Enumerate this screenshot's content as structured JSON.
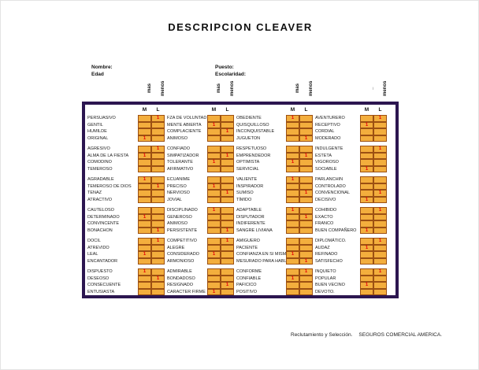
{
  "title": "DESCRIPCION CLEAVER",
  "meta": {
    "nombre_label": "Nombre:",
    "edad_label": "Edad",
    "puesto_label": "Puesto:",
    "escolaridad_label": "Escolaridad:"
  },
  "mark_headers": [
    {
      "mas": "mas",
      "menos": "menos"
    },
    {
      "mas": "mas",
      "menos": "menos"
    },
    {
      "mas": "mas",
      "menos": "menos"
    },
    {
      "mas": "_",
      "menos": "menos"
    }
  ],
  "table": {
    "m_header": "M",
    "l_header": "L",
    "groups": [
      {
        "rows": [
          {
            "words": [
              "PERSUASIVO",
              "FZA DE VOLUNTAD",
              "OBEDIENTE",
              "AVENTURERO"
            ],
            "marks": [
              [
                "",
                "1"
              ],
              [
                "",
                ""
              ],
              [
                "1",
                ""
              ],
              [
                "",
                "1"
              ]
            ]
          },
          {
            "words": [
              "GENTIL",
              "MENTE ABIERTA",
              "QUISQUILLOSO",
              "RECEPTIVO"
            ],
            "marks": [
              [
                "",
                ""
              ],
              [
                "1",
                ""
              ],
              [
                "",
                ""
              ],
              [
                "1",
                ""
              ]
            ]
          },
          {
            "words": [
              "HUMILDE",
              "COMPLACIENTE",
              "INCONQUISTABLE",
              "CORDIAL"
            ],
            "marks": [
              [
                "",
                ""
              ],
              [
                "",
                "1"
              ],
              [
                "",
                ""
              ],
              [
                "",
                ""
              ]
            ]
          },
          {
            "words": [
              "ORIGINAL",
              "ANIMOSO",
              "JUGUETON",
              "MODERADO"
            ],
            "marks": [
              [
                "1",
                ""
              ],
              [
                "",
                ""
              ],
              [
                "",
                "1"
              ],
              [
                "",
                ""
              ]
            ]
          }
        ]
      },
      {
        "rows": [
          {
            "words": [
              "AGRESIVO",
              "CONFIADO",
              "RESPETUOSO",
              "INDULGENTE"
            ],
            "marks": [
              [
                "",
                "1"
              ],
              [
                "",
                ""
              ],
              [
                "",
                ""
              ],
              [
                "",
                "1"
              ]
            ]
          },
          {
            "words": [
              "ALMA DE LA FIESTA",
              "SIMPATIZADOR",
              "EMPRENDEDOR",
              "ESTETA"
            ],
            "marks": [
              [
                "1",
                ""
              ],
              [
                "",
                "1"
              ],
              [
                "",
                "1"
              ],
              [
                "",
                ""
              ]
            ]
          },
          {
            "words": [
              "COMODINO",
              "TOLERANTE",
              "OPTIMISTA",
              "VIGOROSO"
            ],
            "marks": [
              [
                "",
                ""
              ],
              [
                "1",
                ""
              ],
              [
                "1",
                ""
              ],
              [
                "",
                ""
              ]
            ]
          },
          {
            "words": [
              "TEMEROSO",
              "AFIRMATIVO",
              "SERVICIAL",
              "SOCIABLE"
            ],
            "marks": [
              [
                "",
                ""
              ],
              [
                "",
                ""
              ],
              [
                "",
                ""
              ],
              [
                "1",
                ""
              ]
            ]
          }
        ]
      },
      {
        "rows": [
          {
            "words": [
              "AGRADABLE",
              "ECUANIME",
              "VALIENTE",
              "PARLANCHIN"
            ],
            "marks": [
              [
                "1",
                ""
              ],
              [
                "",
                ""
              ],
              [
                "1",
                ""
              ],
              [
                "",
                ""
              ]
            ]
          },
          {
            "words": [
              "TEMEROSO DE DIOS",
              "PRECISO",
              "INSPIRADOR",
              "CONTROLADO"
            ],
            "marks": [
              [
                "",
                "1"
              ],
              [
                "1",
                ""
              ],
              [
                "",
                ""
              ],
              [
                "",
                ""
              ]
            ]
          },
          {
            "words": [
              "TENAZ",
              "NERVIOSO",
              "SUMISO",
              "CONVENCIONAL"
            ],
            "marks": [
              [
                "",
                ""
              ],
              [
                "",
                "1"
              ],
              [
                "",
                "1"
              ],
              [
                "",
                "1"
              ]
            ]
          },
          {
            "words": [
              "ATRACTIVO",
              "JOVIAL",
              "TÍMIDO",
              "DECISIVO"
            ],
            "marks": [
              [
                "",
                ""
              ],
              [
                "",
                ""
              ],
              [
                "",
                ""
              ],
              [
                "1",
                ""
              ]
            ]
          }
        ]
      },
      {
        "rows": [
          {
            "words": [
              "CAUTELOSO",
              "DISCIPLINADO",
              "ADAPTABLE",
              "COHIBIDO"
            ],
            "marks": [
              [
                "",
                ""
              ],
              [
                "1",
                ""
              ],
              [
                "1",
                ""
              ],
              [
                "",
                "1"
              ]
            ]
          },
          {
            "words": [
              "DETERMINADO",
              "GENEROSO",
              "DISPUTADOR",
              "EXACTO"
            ],
            "marks": [
              [
                "1",
                ""
              ],
              [
                "",
                ""
              ],
              [
                "",
                "1"
              ],
              [
                "",
                ""
              ]
            ]
          },
          {
            "words": [
              "CONVINCENTE",
              "ANIMOSO",
              "INDIFERENTE",
              "FRANCO"
            ],
            "marks": [
              [
                "",
                ""
              ],
              [
                "",
                ""
              ],
              [
                "",
                ""
              ],
              [
                "",
                ""
              ]
            ]
          },
          {
            "words": [
              "BONACHON",
              "PERSISTENTE",
              "SANGRE LIVIANA",
              "BUEN COMPAÑERO"
            ],
            "marks": [
              [
                "",
                "1"
              ],
              [
                "",
                "1"
              ],
              [
                "",
                ""
              ],
              [
                "1",
                ""
              ]
            ]
          }
        ]
      },
      {
        "rows": [
          {
            "words": [
              "DOCIL",
              "COMPETITIVO",
              "AMIGUERO",
              "DIPLOMÁTICO."
            ],
            "marks": [
              [
                "",
                "1"
              ],
              [
                "",
                "1"
              ],
              [
                "",
                ""
              ],
              [
                "",
                "1"
              ]
            ]
          },
          {
            "words": [
              "ATREVIDO",
              "ALEGRE",
              "PACIENTE",
              "AUDAZ"
            ],
            "marks": [
              [
                "",
                ""
              ],
              [
                "",
                ""
              ],
              [
                "",
                ""
              ],
              [
                "1",
                ""
              ]
            ]
          },
          {
            "words": [
              "LEAL",
              "CONSIDERADO",
              "CONFIANZA EN SI MISMO",
              "REFINADO"
            ],
            "marks": [
              [
                "1",
                ""
              ],
              [
                "1",
                ""
              ],
              [
                "1",
                ""
              ],
              [
                "",
                ""
              ]
            ]
          },
          {
            "words": [
              "ENCANTADOR",
              "ARMONIOSO",
              "MESURADO PARA HABLAR",
              "SATISFECHO"
            ],
            "marks": [
              [
                "",
                ""
              ],
              [
                "",
                ""
              ],
              [
                "",
                "1"
              ],
              [
                "",
                ""
              ]
            ]
          }
        ]
      },
      {
        "rows": [
          {
            "words": [
              "DISPUESTO",
              "ADMIRABLE",
              "CONFORME",
              "INQUIETO"
            ],
            "marks": [
              [
                "1",
                ""
              ],
              [
                "",
                ""
              ],
              [
                "",
                "1"
              ],
              [
                "",
                "1"
              ]
            ]
          },
          {
            "words": [
              "DESEOSO",
              "BONDADOSO",
              "CONFIABLE",
              "POPULAR"
            ],
            "marks": [
              [
                "",
                "1"
              ],
              [
                "",
                ""
              ],
              [
                "1",
                ""
              ],
              [
                "",
                ""
              ]
            ]
          },
          {
            "words": [
              "CONSECUENTE",
              "RESIGNADO",
              "PAFICICO",
              "BUEN VECINO"
            ],
            "marks": [
              [
                "",
                ""
              ],
              [
                "",
                "1"
              ],
              [
                "",
                ""
              ],
              [
                "1",
                ""
              ]
            ]
          },
          {
            "words": [
              "ENTUSIASTA",
              "CARACTER FIRME",
              "POSITIVO",
              "DEVOTO."
            ],
            "marks": [
              [
                "",
                ""
              ],
              [
                "1",
                ""
              ],
              [
                "",
                ""
              ],
              [
                "",
                ""
              ]
            ]
          }
        ]
      }
    ]
  },
  "footer": {
    "left": "Reclutamiento y Selección.",
    "right": "SEGUROS COMERCIAL AMERICA."
  },
  "colors": {
    "frame": "#2c1650",
    "cell_fill": "#f3ae3d",
    "cell_border": "#9c5012",
    "mark": "#e80008"
  }
}
